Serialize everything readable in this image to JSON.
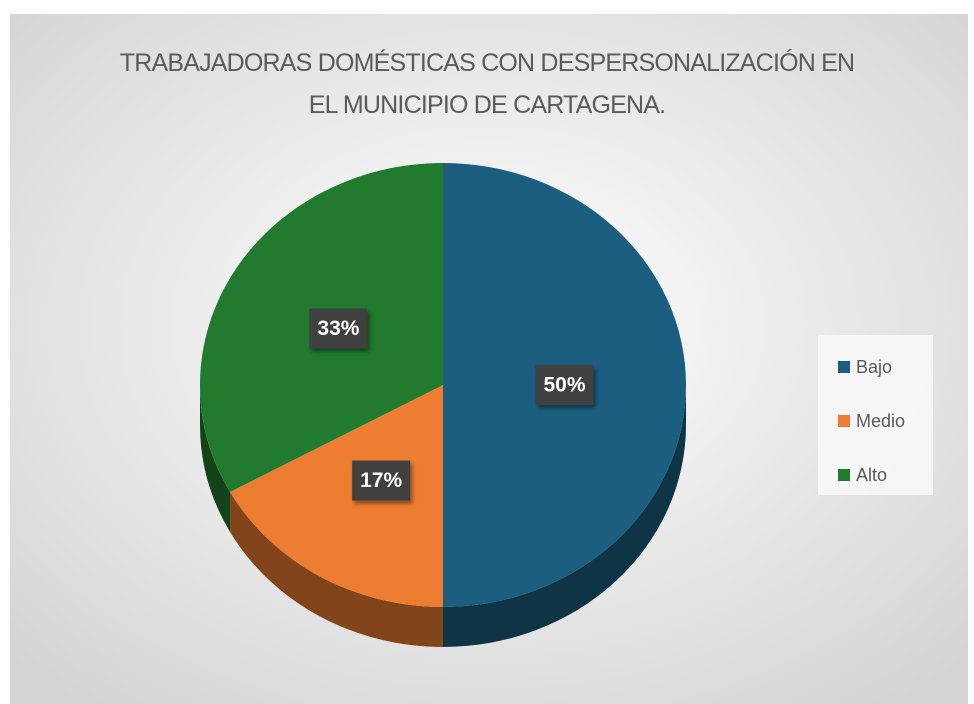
{
  "chart_data": {
    "type": "pie3d",
    "title": "TRABAJADORAS DOMÉSTICAS CON DESPERSONALIZACIÓN EN EL MUNICIPIO DE CARTAGENA.",
    "categories": [
      "Bajo",
      "Medio",
      "Alto"
    ],
    "values": [
      50,
      17,
      33
    ],
    "value_labels": [
      "50%",
      "17%",
      "33%"
    ],
    "colors": [
      "#1c5e80",
      "#ed7d31",
      "#217a2e"
    ],
    "legend": "right"
  }
}
